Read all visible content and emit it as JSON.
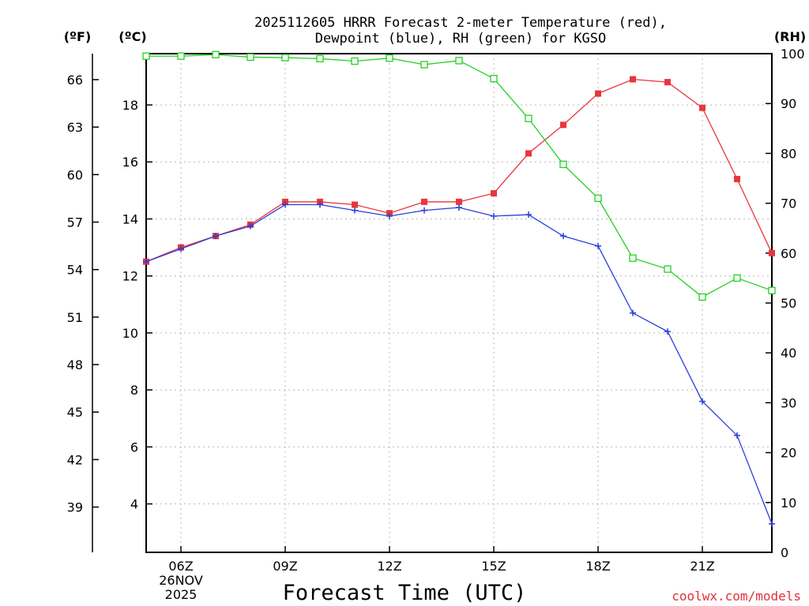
{
  "chart_data": {
    "type": "line",
    "title": [
      "2025112605 HRRR Forecast 2-meter Temperature (red),",
      "Dewpoint (blue), RH (green) for KGSO"
    ],
    "xlabel": "Forecast Time (UTC)",
    "units": {
      "fahrenheit": "(ºF)",
      "celsius": "(ºC)",
      "rh": "(RH)"
    },
    "credit": "coolwx.com/models",
    "x_hours": [
      5,
      6,
      7,
      8,
      9,
      10,
      11,
      12,
      13,
      14,
      15,
      16,
      17,
      18,
      19,
      20,
      21,
      22,
      23
    ],
    "xlim": [
      5,
      23
    ],
    "x_ticks": [
      {
        "x": 6,
        "lines": [
          "06Z",
          "26NOV",
          "2025"
        ]
      },
      {
        "x": 9,
        "lines": [
          "09Z"
        ]
      },
      {
        "x": 12,
        "lines": [
          "12Z"
        ]
      },
      {
        "x": 15,
        "lines": [
          "15Z"
        ]
      },
      {
        "x": 18,
        "lines": [
          "18Z"
        ]
      },
      {
        "x": 21,
        "lines": [
          "21Z"
        ]
      }
    ],
    "celsius_axis": {
      "lim": [
        2.3,
        19.8
      ],
      "ticks": [
        "4",
        "6",
        "8",
        "10",
        "12",
        "14",
        "16",
        "18"
      ]
    },
    "fahrenheit_axis": {
      "lim": [
        36.14,
        67.64
      ],
      "ticks": [
        "39",
        "42",
        "45",
        "48",
        "51",
        "54",
        "57",
        "60",
        "63",
        "66"
      ]
    },
    "rh_axis": {
      "lim": [
        0,
        100
      ],
      "ticks": [
        "0",
        "10",
        "20",
        "30",
        "40",
        "50",
        "60",
        "70",
        "80",
        "90",
        "100"
      ]
    },
    "grid": true,
    "series": [
      {
        "name": "Temperature",
        "axis": "celsius",
        "color": "#e8363c",
        "marker": "filled-square",
        "values": [
          12.5,
          13.0,
          13.4,
          13.8,
          14.6,
          14.6,
          14.5,
          14.2,
          14.6,
          14.6,
          14.9,
          16.3,
          17.3,
          18.4,
          18.9,
          18.8,
          17.9,
          15.4,
          12.8
        ]
      },
      {
        "name": "Dewpoint",
        "axis": "celsius",
        "color": "#2a3fd8",
        "marker": "plus",
        "values": [
          12.5,
          12.95,
          13.4,
          13.75,
          14.5,
          14.5,
          14.3,
          14.1,
          14.3,
          14.4,
          14.1,
          14.15,
          13.4,
          13.05,
          10.7,
          10.05,
          7.6,
          6.4,
          3.3
        ]
      },
      {
        "name": "RH",
        "axis": "rh",
        "color": "#22d020",
        "marker": "open-square",
        "values": [
          99.5,
          99.5,
          99.8,
          99.3,
          99.2,
          99.0,
          98.5,
          99.1,
          97.8,
          98.6,
          95.0,
          87.0,
          77.8,
          71.0,
          59.0,
          56.8,
          51.2,
          55.0,
          52.5
        ]
      }
    ]
  }
}
